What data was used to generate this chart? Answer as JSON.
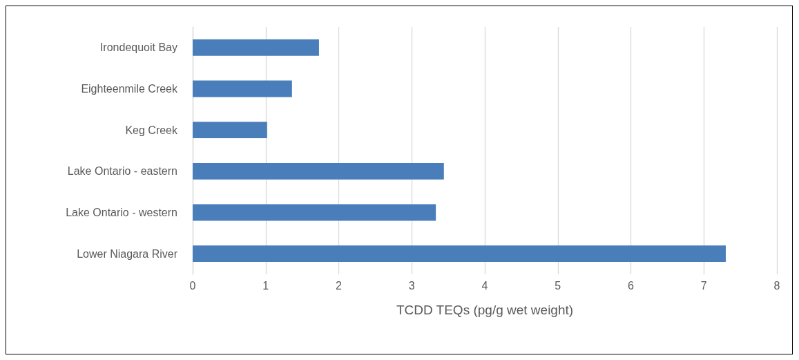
{
  "chart_data": {
    "type": "bar",
    "orientation": "horizontal",
    "xlabel": "TCDD TEQs (pg/g wet weight)",
    "categories": [
      "Irondequoit Bay",
      "Eighteenmile Creek",
      "Keg Creek",
      "Lake Ontario - eastern",
      "Lake Ontario - western",
      "Lower Niagara River"
    ],
    "values": [
      1.73,
      1.36,
      1.02,
      3.44,
      3.33,
      7.3
    ],
    "color": "#4a7ebb",
    "xlim": [
      0,
      8
    ],
    "xticks": [
      0,
      1,
      2,
      3,
      4,
      5,
      6,
      7,
      8
    ],
    "grid": "x"
  }
}
